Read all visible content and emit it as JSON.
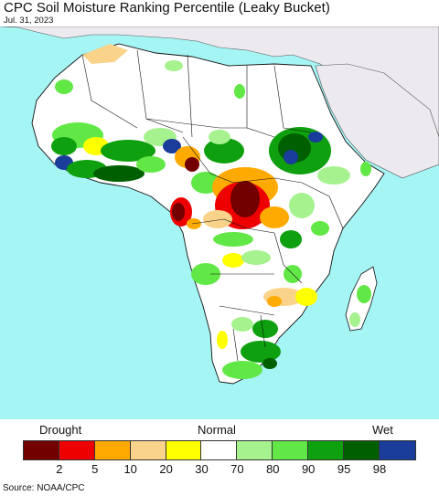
{
  "title": "CPC Soil Moisture Ranking Percentile (Leaky Bucket)",
  "date": "Jul. 31, 2023",
  "legend": {
    "left_label": "Drought",
    "mid_label": "Normal",
    "right_label": "Wet",
    "colors": [
      "#720000",
      "#ee0000",
      "#ffaa00",
      "#fad38a",
      "#ffff00",
      "#ffffff",
      "#a6f28f",
      "#62e846",
      "#0ea00e",
      "#006000",
      "#1a3c9a"
    ],
    "ticks": [
      "2",
      "5",
      "10",
      "20",
      "30",
      "70",
      "80",
      "90",
      "95",
      "98"
    ]
  },
  "source": "Source: NOAA/CPC",
  "colors": {
    "ocean": "#a6f5f5",
    "non_africa_land": "#ece9ef",
    "africa_land": "#ffffff",
    "border": "#111111"
  }
}
